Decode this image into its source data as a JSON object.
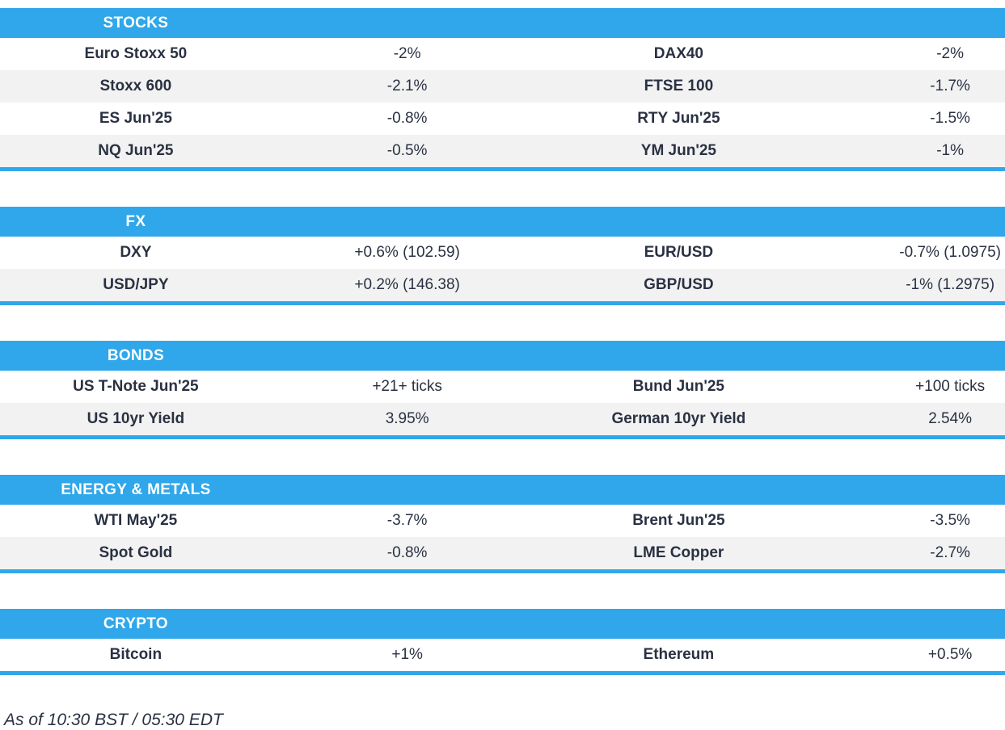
{
  "page": {
    "footer_note": "As of 10:30 BST / 05:30 EDT"
  },
  "colors": {
    "accent_blue": "#2FA7EA",
    "row_alt_gray": "#F2F2F2",
    "text_dark": "#2A3142",
    "header_text": "#FFFFFF"
  },
  "sections": [
    {
      "title": "STOCKS",
      "rows": [
        {
          "cells": [
            "Euro Stoxx 50",
            "-2%",
            "DAX40",
            "-2%"
          ]
        },
        {
          "cells": [
            "Stoxx 600",
            "-2.1%",
            "FTSE 100",
            "-1.7%"
          ]
        },
        {
          "cells": [
            "ES Jun'25",
            "-0.8%",
            "RTY Jun'25",
            "-1.5%"
          ]
        },
        {
          "cells": [
            "NQ Jun'25",
            "-0.5%",
            "YM Jun'25",
            "-1%"
          ]
        }
      ]
    },
    {
      "title": "FX",
      "rows": [
        {
          "cells": [
            "DXY",
            "+0.6% (102.59)",
            "EUR/USD",
            "-0.7% (1.0975)"
          ]
        },
        {
          "cells": [
            "USD/JPY",
            "+0.2% (146.38)",
            "GBP/USD",
            "-1% (1.2975)"
          ]
        }
      ]
    },
    {
      "title": "BONDS",
      "rows": [
        {
          "cells": [
            "US T-Note Jun'25",
            "+21+ ticks",
            "Bund Jun'25",
            "+100 ticks"
          ]
        },
        {
          "cells": [
            "US 10yr Yield",
            "3.95%",
            "German 10yr Yield",
            "2.54%"
          ]
        }
      ]
    },
    {
      "title": "ENERGY & METALS",
      "rows": [
        {
          "cells": [
            "WTI May'25",
            "-3.7%",
            "Brent Jun'25",
            "-3.5%"
          ]
        },
        {
          "cells": [
            "Spot Gold",
            "-0.8%",
            "LME Copper",
            "-2.7%"
          ]
        }
      ]
    },
    {
      "title": "CRYPTO",
      "rows": [
        {
          "cells": [
            "Bitcoin",
            "+1%",
            "Ethereum",
            "+0.5%"
          ]
        }
      ]
    }
  ]
}
